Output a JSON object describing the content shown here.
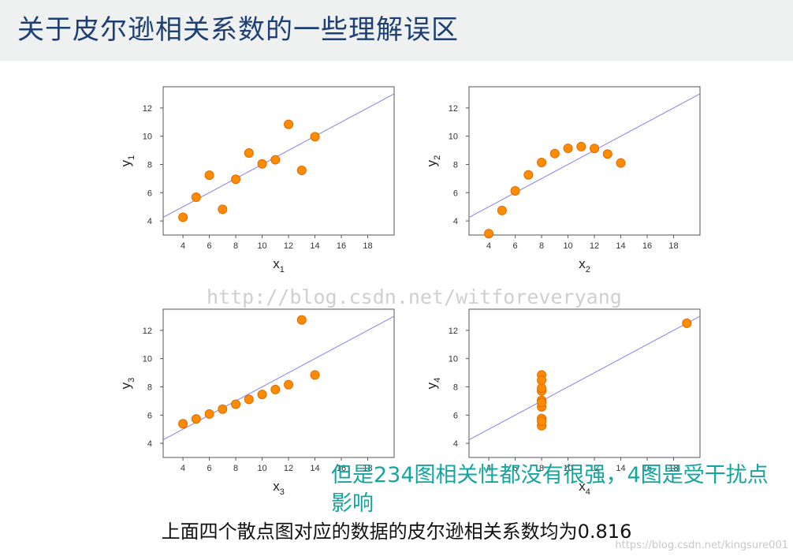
{
  "slide": {
    "title": "关于皮尔逊相关系数的一些理解误区",
    "watermark": "http://blog.csdn.net/witforeveryang",
    "overlay_note": "但是234图相关性都没有很强，4图是受干扰点影响",
    "caption": "上面四个散点图对应的数据的皮尔逊相关系数均为0.816",
    "credit": "https://blog.csdn.net/kingsure001"
  },
  "colors": {
    "point": "#ff8c00",
    "point_edge": "#e06a00",
    "fit_line": "#8080ee",
    "axis": "#555555"
  },
  "chart_data": [
    {
      "type": "scatter",
      "xlabel": "x",
      "xlabel_sub": "1",
      "ylabel": "y",
      "ylabel_sub": "1",
      "xlim": [
        2.5,
        20
      ],
      "ylim": [
        3,
        13.5
      ],
      "xticks": [
        4,
        6,
        8,
        10,
        12,
        14,
        16,
        18
      ],
      "yticks": [
        4,
        6,
        8,
        10,
        12
      ],
      "x": [
        10,
        8,
        13,
        9,
        11,
        14,
        6,
        4,
        12,
        7,
        5
      ],
      "y": [
        8.04,
        6.95,
        7.58,
        8.81,
        8.33,
        9.96,
        7.24,
        4.26,
        10.84,
        4.82,
        5.68
      ],
      "fit": {
        "intercept": 3,
        "slope": 0.5
      }
    },
    {
      "type": "scatter",
      "xlabel": "x",
      "xlabel_sub": "2",
      "ylabel": "y",
      "ylabel_sub": "2",
      "xlim": [
        2.5,
        20
      ],
      "ylim": [
        3,
        13.5
      ],
      "xticks": [
        4,
        6,
        8,
        10,
        12,
        14,
        16,
        18
      ],
      "yticks": [
        4,
        6,
        8,
        10,
        12
      ],
      "x": [
        10,
        8,
        13,
        9,
        11,
        14,
        6,
        4,
        12,
        7,
        5
      ],
      "y": [
        9.14,
        8.14,
        8.74,
        8.77,
        9.26,
        8.1,
        6.13,
        3.1,
        9.13,
        7.26,
        4.74
      ],
      "fit": {
        "intercept": 3,
        "slope": 0.5
      }
    },
    {
      "type": "scatter",
      "xlabel": "x",
      "xlabel_sub": "3",
      "ylabel": "y",
      "ylabel_sub": "3",
      "xlim": [
        2.5,
        20
      ],
      "ylim": [
        3,
        13.5
      ],
      "xticks": [
        4,
        6,
        8,
        10,
        12,
        14,
        16,
        18
      ],
      "yticks": [
        4,
        6,
        8,
        10,
        12
      ],
      "x": [
        10,
        8,
        13,
        9,
        11,
        14,
        6,
        4,
        12,
        7,
        5
      ],
      "y": [
        7.46,
        6.77,
        12.74,
        7.11,
        7.81,
        8.84,
        6.08,
        5.39,
        8.15,
        6.42,
        5.73
      ],
      "fit": {
        "intercept": 3,
        "slope": 0.5
      }
    },
    {
      "type": "scatter",
      "xlabel": "x",
      "xlabel_sub": "4",
      "ylabel": "y",
      "ylabel_sub": "4",
      "xlim": [
        2.5,
        20
      ],
      "ylim": [
        3,
        13.5
      ],
      "xticks": [
        4,
        6,
        8,
        10,
        12,
        14,
        16,
        18
      ],
      "yticks": [
        4,
        6,
        8,
        10,
        12
      ],
      "x": [
        8,
        8,
        8,
        8,
        8,
        8,
        8,
        19,
        8,
        8,
        8
      ],
      "y": [
        6.58,
        5.76,
        7.71,
        8.84,
        8.47,
        7.04,
        5.25,
        12.5,
        5.56,
        7.91,
        6.89
      ],
      "fit": {
        "intercept": 3,
        "slope": 0.5
      }
    }
  ]
}
